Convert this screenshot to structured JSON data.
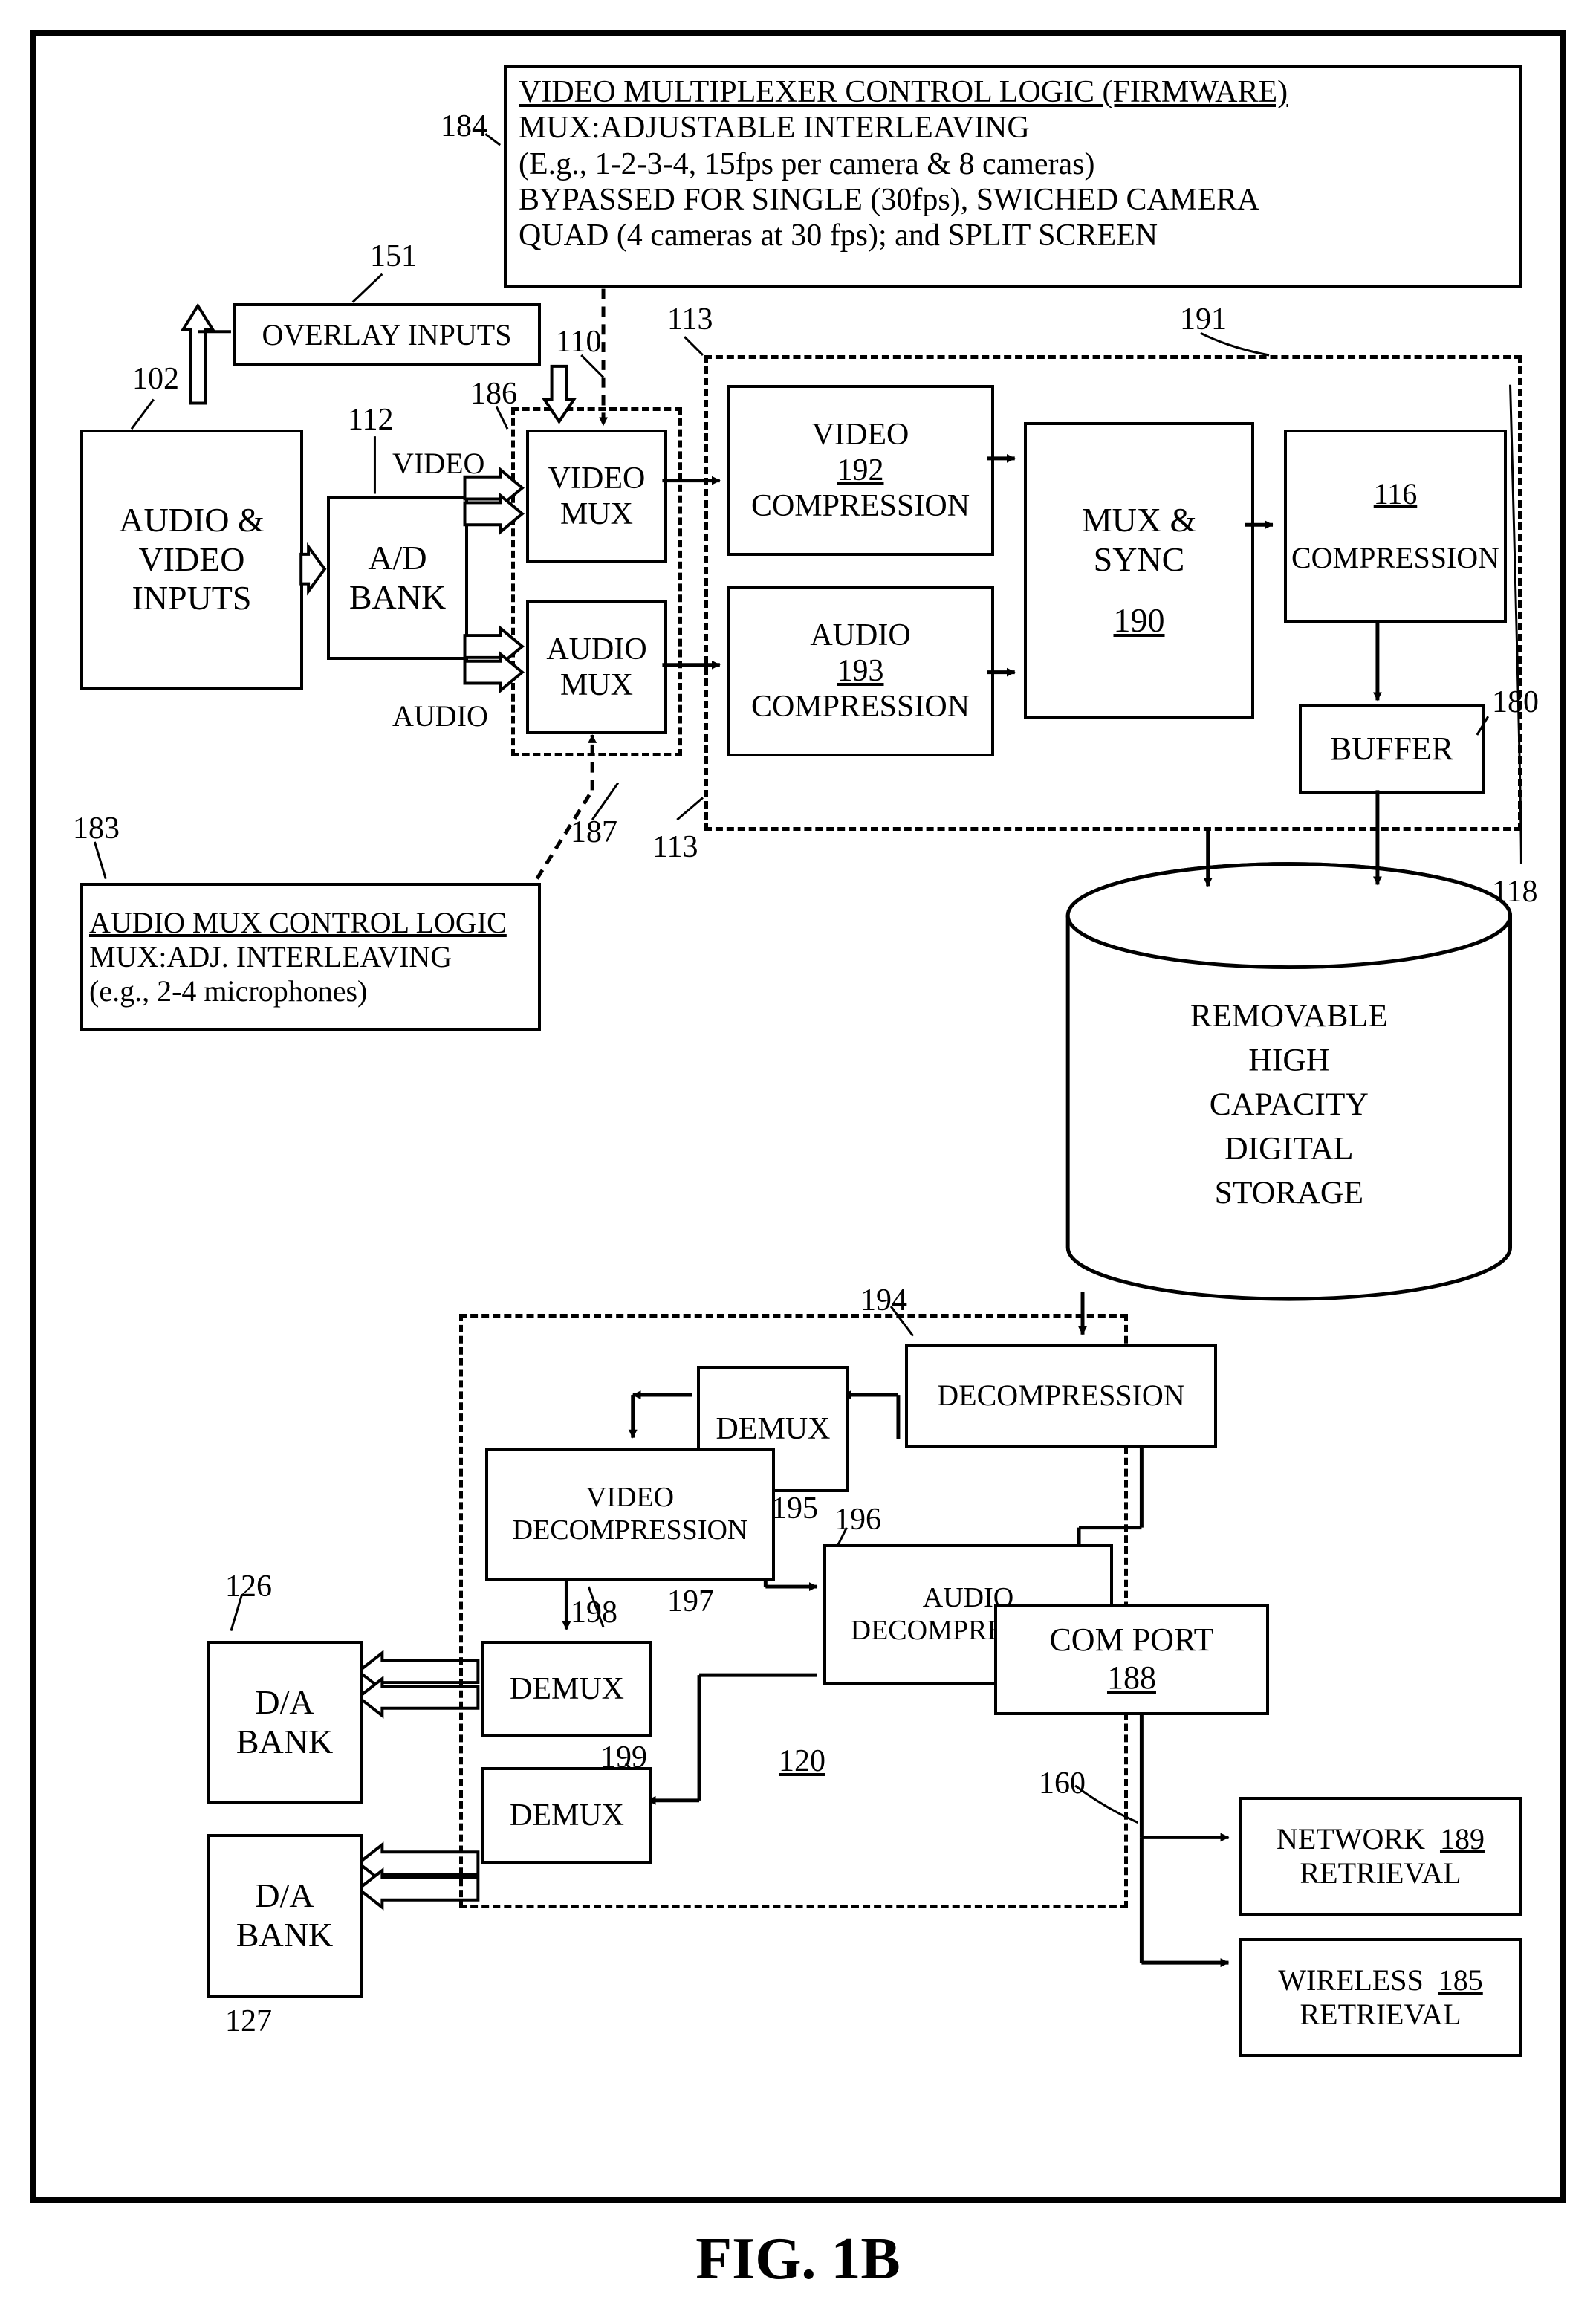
{
  "figure_label": "FIG. 1B",
  "font": {
    "block": 46,
    "small": 40,
    "tiny": 36,
    "ref": 42
  },
  "colors": {
    "stroke": "#000000",
    "bg": "#ffffff",
    "dash": "#000000"
  },
  "blocks": {
    "av_inputs": "AUDIO &\nVIDEO\nINPUTS",
    "overlay_inputs": "OVERLAY INPUTS",
    "ad_bank": "A/D\nBANK",
    "video_mux": "VIDEO\nMUX",
    "audio_mux": "AUDIO\nMUX",
    "video_comp": "VIDEO\nCOMPRESSION",
    "audio_comp": "AUDIO\nCOMPRESSION",
    "mux_sync": "MUX &\nSYNC",
    "compression": "COMPRESSION",
    "buffer": "BUFFER",
    "storage": "REMOVABLE\nHIGH\nCAPACITY\nDIGITAL\nSTORAGE",
    "decompression": "DECOMPRESSION",
    "demux": "DEMUX",
    "video_decomp": "VIDEO\nDECOMPRESSION",
    "audio_decomp": "AUDIO\nDECOMPRESSION",
    "demux2": "DEMUX",
    "demux3": "DEMUX",
    "da_bank1": "D/A\nBANK",
    "da_bank2": "D/A\nBANK",
    "com_port": "COM PORT",
    "net_retrieval": "NETWORK\nRETRIEVAL",
    "wireless_retrieval": "WIRELESS\nRETRIEVAL",
    "video_mux_logic_title": "VIDEO MULTIPLEXER CONTROL LOGIC (FIRMWARE)",
    "video_mux_logic_body": "MUX:ADJUSTABLE INTERLEAVING\n(E.g., 1-2-3-4, 15fps per camera & 8 cameras)\nBYPASSED FOR SINGLE (30fps),   SWICHED CAMERA\nQUAD (4 cameras at 30 fps);  and SPLIT SCREEN",
    "audio_mux_logic": "AUDIO MUX CONTROL LOGIC\nMUX:ADJ. INTERLEAVING\n(e.g., 2-4 microphones)"
  },
  "plain": {
    "video": "VIDEO",
    "audio": "AUDIO"
  },
  "refs": {
    "r102": "102",
    "r151": "151",
    "r112": "112",
    "r186": "186",
    "r110": "110",
    "r113a": "113",
    "r113b": "113",
    "r184": "184",
    "r187": "187",
    "r183": "183",
    "r192": "192",
    "r193": "193",
    "r190": "190",
    "r191": "191",
    "r116": "116",
    "r180": "180",
    "r118": "118",
    "r194": "194",
    "r195": "195",
    "r196": "196",
    "r197": "197",
    "r198": "198",
    "r199": "199",
    "r120": "120",
    "r126": "126",
    "r127": "127",
    "r188": "188",
    "r160": "160",
    "r189": "189",
    "r185": "185"
  }
}
